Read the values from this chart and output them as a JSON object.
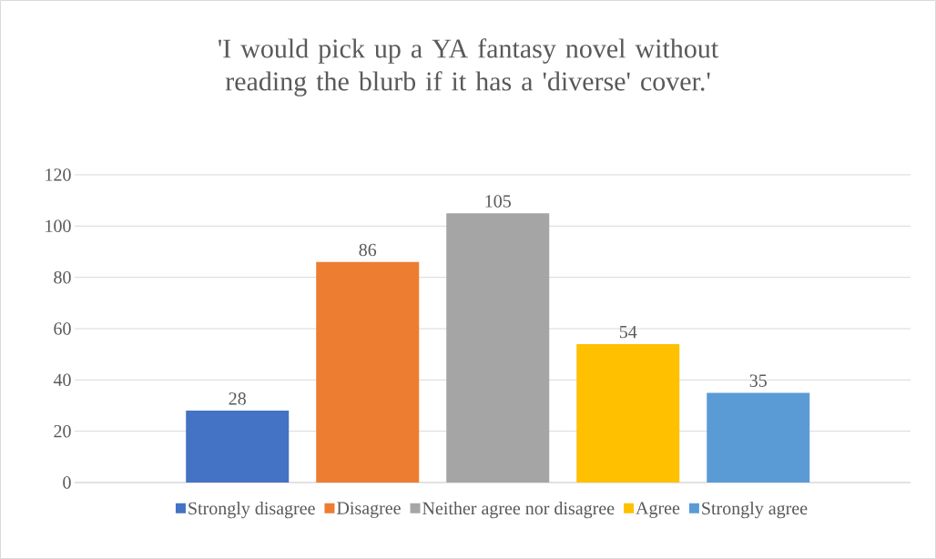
{
  "chart_data": {
    "type": "bar",
    "title": "'I would pick up a YA fantasy novel without reading the blurb if it has a 'diverse' cover.'",
    "categories": [
      null
    ],
    "series": [
      {
        "name": "Strongly disagree",
        "color": "#4472c4",
        "values": [
          28
        ]
      },
      {
        "name": "Disagree",
        "color": "#ed7d31",
        "values": [
          86
        ]
      },
      {
        "name": "Neither agree nor disagree",
        "color": "#a5a5a5",
        "values": [
          105
        ]
      },
      {
        "name": "Agree",
        "color": "#ffc000",
        "values": [
          54
        ]
      },
      {
        "name": "Strongly agree",
        "color": "#5b9bd5",
        "values": [
          35
        ]
      }
    ],
    "ylim": [
      0,
      120
    ],
    "yticks": [
      0,
      20,
      40,
      60,
      80,
      100,
      120
    ],
    "grid": "y",
    "legend": "bottom",
    "data_labels": true
  }
}
